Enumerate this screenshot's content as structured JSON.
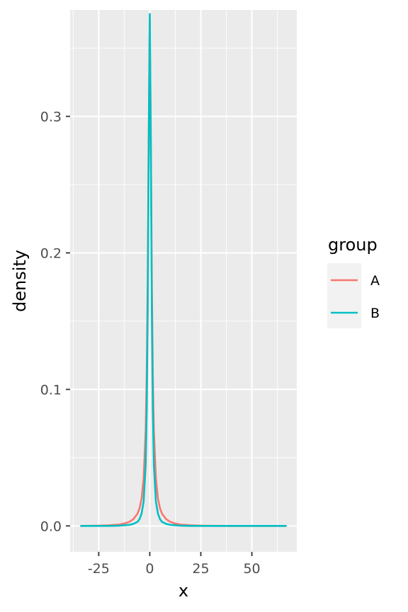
{
  "chart_data": {
    "type": "line",
    "title": "",
    "xlabel": "x",
    "ylabel": "density",
    "xlim": [
      -39,
      72
    ],
    "ylim": [
      -0.019,
      0.378
    ],
    "x_ticks": [
      {
        "value": -25,
        "label": "-25"
      },
      {
        "value": 0,
        "label": "0"
      },
      {
        "value": 25,
        "label": "25"
      },
      {
        "value": 50,
        "label": "50"
      }
    ],
    "y_ticks": [
      {
        "value": 0.0,
        "label": "0.0"
      },
      {
        "value": 0.1,
        "label": "0.1"
      },
      {
        "value": 0.2,
        "label": "0.2"
      },
      {
        "value": 0.3,
        "label": "0.3"
      }
    ],
    "grid": true,
    "legend": {
      "title": "group",
      "position": "right"
    },
    "series": [
      {
        "name": "A",
        "color": "#F8766D",
        "x": [
          -34,
          -25,
          -20,
          -15,
          -12,
          -10,
          -8,
          -6,
          -5,
          -4,
          -3,
          -2,
          -1.5,
          -1,
          -0.5,
          0,
          0.5,
          1,
          1.5,
          2,
          3,
          4,
          5,
          6,
          8,
          10,
          12,
          15,
          20,
          25,
          30,
          40,
          50,
          67
        ],
        "y": [
          0.0,
          0.0002,
          0.0005,
          0.001,
          0.002,
          0.003,
          0.005,
          0.009,
          0.013,
          0.02,
          0.035,
          0.07,
          0.11,
          0.18,
          0.29,
          0.37,
          0.29,
          0.18,
          0.11,
          0.07,
          0.035,
          0.02,
          0.013,
          0.009,
          0.005,
          0.003,
          0.002,
          0.001,
          0.0005,
          0.0002,
          0.0001,
          0.0,
          0.0,
          0.0
        ]
      },
      {
        "name": "B",
        "color": "#00BFC4",
        "x": [
          -34,
          -25,
          -20,
          -15,
          -10,
          -8,
          -6,
          -5,
          -4,
          -3,
          -2,
          -1.5,
          -1,
          -0.5,
          0,
          0.5,
          1,
          1.5,
          2,
          3,
          4,
          5,
          6,
          8,
          10,
          15,
          20,
          25,
          30,
          40,
          50,
          67
        ],
        "y": [
          0.0,
          0.0,
          0.0,
          0.0002,
          0.0008,
          0.0015,
          0.003,
          0.005,
          0.009,
          0.018,
          0.045,
          0.085,
          0.16,
          0.28,
          0.375,
          0.28,
          0.16,
          0.085,
          0.045,
          0.018,
          0.009,
          0.005,
          0.003,
          0.0015,
          0.0008,
          0.0002,
          0.0,
          0.0,
          0.0,
          0.0,
          0.0,
          0.0
        ]
      }
    ]
  }
}
